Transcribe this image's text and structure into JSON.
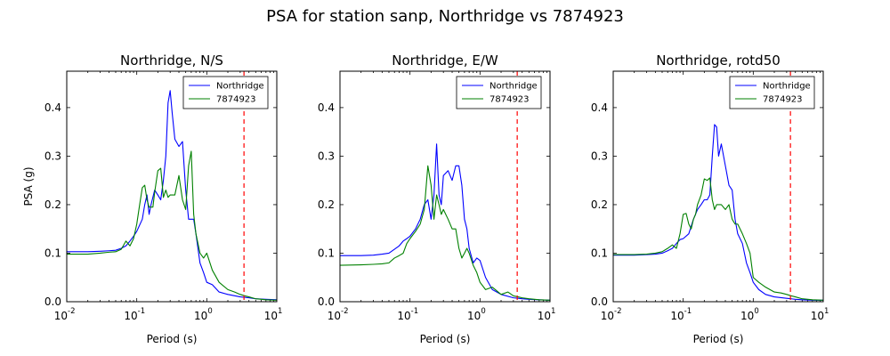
{
  "figure": {
    "suptitle": "PSA for station sanp, Northridge vs 7874923"
  },
  "colors": {
    "series_a": "#0000ff",
    "series_b": "#008000",
    "marker": "#ff0000"
  },
  "chart_data": [
    {
      "type": "line",
      "title": "Northridge, N/S",
      "xlabel": "Period (s)",
      "ylabel": "PSA (g)",
      "xscale": "log",
      "xlim": [
        0.01,
        10
      ],
      "ylim": [
        0,
        0.475
      ],
      "xticks": [
        0.01,
        0.1,
        1,
        10
      ],
      "xtick_labels": [
        "10",
        "10",
        "10",
        "10"
      ],
      "xtick_exponents": [
        "-2",
        "-1",
        "0",
        "1"
      ],
      "yticks": [
        0,
        0.1,
        0.2,
        0.3,
        0.4
      ],
      "ytick_labels": [
        "0.0",
        "0.1",
        "0.2",
        "0.3",
        "0.4"
      ],
      "legend_position": "top-right",
      "vline": 3.4,
      "series": [
        {
          "name": "Northridge",
          "x": [
            0.01,
            0.02,
            0.03,
            0.04,
            0.05,
            0.06,
            0.07,
            0.08,
            0.09,
            0.1,
            0.12,
            0.13,
            0.14,
            0.15,
            0.16,
            0.18,
            0.2,
            0.22,
            0.24,
            0.26,
            0.28,
            0.3,
            0.32,
            0.35,
            0.4,
            0.45,
            0.5,
            0.55,
            0.6,
            0.65,
            0.7,
            0.8,
            0.9,
            1.0,
            1.2,
            1.5,
            2.0,
            3.0,
            4.0,
            5.0,
            7.0,
            10.0
          ],
          "y": [
            0.103,
            0.103,
            0.104,
            0.105,
            0.106,
            0.11,
            0.115,
            0.125,
            0.135,
            0.145,
            0.17,
            0.2,
            0.22,
            0.18,
            0.2,
            0.23,
            0.22,
            0.21,
            0.25,
            0.3,
            0.41,
            0.435,
            0.39,
            0.335,
            0.32,
            0.33,
            0.23,
            0.17,
            0.17,
            0.17,
            0.14,
            0.08,
            0.06,
            0.04,
            0.035,
            0.02,
            0.015,
            0.01,
            0.008,
            0.006,
            0.005,
            0.004
          ]
        },
        {
          "name": "7874923",
          "x": [
            0.01,
            0.02,
            0.03,
            0.04,
            0.05,
            0.06,
            0.07,
            0.08,
            0.09,
            0.1,
            0.11,
            0.12,
            0.13,
            0.14,
            0.15,
            0.17,
            0.18,
            0.2,
            0.22,
            0.24,
            0.26,
            0.28,
            0.3,
            0.35,
            0.4,
            0.45,
            0.5,
            0.55,
            0.6,
            0.65,
            0.7,
            0.8,
            0.9,
            1.0,
            1.2,
            1.5,
            2.0,
            2.5,
            3.0,
            3.5,
            4.0,
            5.0,
            7.0,
            10.0
          ],
          "y": [
            0.098,
            0.098,
            0.1,
            0.102,
            0.103,
            0.108,
            0.125,
            0.115,
            0.13,
            0.16,
            0.2,
            0.235,
            0.24,
            0.21,
            0.195,
            0.195,
            0.225,
            0.27,
            0.275,
            0.215,
            0.23,
            0.215,
            0.22,
            0.22,
            0.26,
            0.21,
            0.19,
            0.28,
            0.31,
            0.18,
            0.14,
            0.1,
            0.09,
            0.1,
            0.065,
            0.04,
            0.025,
            0.02,
            0.015,
            0.012,
            0.01,
            0.006,
            0.004,
            0.003
          ]
        }
      ]
    },
    {
      "type": "line",
      "title": "Northridge, E/W",
      "xlabel": "Period (s)",
      "ylabel": "",
      "xscale": "log",
      "xlim": [
        0.01,
        10
      ],
      "ylim": [
        0,
        0.475
      ],
      "xticks": [
        0.01,
        0.1,
        1,
        10
      ],
      "xtick_labels": [
        "10",
        "10",
        "10",
        "10"
      ],
      "xtick_exponents": [
        "-2",
        "-1",
        "0",
        "1"
      ],
      "yticks": [
        0,
        0.1,
        0.2,
        0.3,
        0.4
      ],
      "ytick_labels": [
        "0.0",
        "0.1",
        "0.2",
        "0.3",
        "0.4"
      ],
      "legend_position": "top-right",
      "vline": 3.4,
      "series": [
        {
          "name": "Northridge",
          "x": [
            0.01,
            0.02,
            0.03,
            0.04,
            0.05,
            0.06,
            0.07,
            0.08,
            0.09,
            0.1,
            0.12,
            0.14,
            0.16,
            0.18,
            0.2,
            0.22,
            0.24,
            0.26,
            0.28,
            0.3,
            0.35,
            0.4,
            0.45,
            0.5,
            0.55,
            0.6,
            0.65,
            0.7,
            0.8,
            0.9,
            1.0,
            1.2,
            1.5,
            2.0,
            3.0,
            4.0,
            5.0,
            7.0,
            10.0
          ],
          "y": [
            0.095,
            0.095,
            0.096,
            0.098,
            0.1,
            0.108,
            0.115,
            0.125,
            0.13,
            0.135,
            0.15,
            0.17,
            0.2,
            0.21,
            0.17,
            0.22,
            0.325,
            0.22,
            0.2,
            0.26,
            0.27,
            0.25,
            0.28,
            0.28,
            0.24,
            0.17,
            0.15,
            0.11,
            0.08,
            0.09,
            0.085,
            0.05,
            0.025,
            0.015,
            0.008,
            0.006,
            0.005,
            0.004,
            0.003
          ]
        },
        {
          "name": "7874923",
          "x": [
            0.01,
            0.02,
            0.03,
            0.04,
            0.05,
            0.06,
            0.07,
            0.08,
            0.09,
            0.1,
            0.12,
            0.14,
            0.16,
            0.18,
            0.2,
            0.22,
            0.24,
            0.26,
            0.28,
            0.3,
            0.35,
            0.4,
            0.45,
            0.5,
            0.55,
            0.6,
            0.65,
            0.7,
            0.8,
            0.9,
            1.0,
            1.2,
            1.5,
            2.0,
            2.5,
            3.0,
            3.5,
            4.0,
            5.0,
            7.0,
            10.0
          ],
          "y": [
            0.075,
            0.076,
            0.077,
            0.078,
            0.08,
            0.09,
            0.095,
            0.1,
            0.12,
            0.13,
            0.145,
            0.16,
            0.19,
            0.28,
            0.24,
            0.17,
            0.22,
            0.2,
            0.18,
            0.19,
            0.17,
            0.15,
            0.15,
            0.11,
            0.09,
            0.1,
            0.11,
            0.1,
            0.075,
            0.06,
            0.04,
            0.025,
            0.03,
            0.015,
            0.02,
            0.012,
            0.01,
            0.008,
            0.006,
            0.004,
            0.003
          ]
        }
      ]
    },
    {
      "type": "line",
      "title": "Northridge, rotd50",
      "xlabel": "Period (s)",
      "ylabel": "",
      "xscale": "log",
      "xlim": [
        0.01,
        10
      ],
      "ylim": [
        0,
        0.475
      ],
      "xticks": [
        0.01,
        0.1,
        1,
        10
      ],
      "xtick_labels": [
        "10",
        "10",
        "10",
        "10"
      ],
      "xtick_exponents": [
        "-2",
        "-1",
        "0",
        "1"
      ],
      "yticks": [
        0,
        0.1,
        0.2,
        0.3,
        0.4
      ],
      "ytick_labels": [
        "0.0",
        "0.1",
        "0.2",
        "0.3",
        "0.4"
      ],
      "legend_position": "top-right",
      "vline": 3.4,
      "series": [
        {
          "name": "Northridge",
          "x": [
            0.01,
            0.02,
            0.03,
            0.04,
            0.05,
            0.06,
            0.07,
            0.08,
            0.09,
            0.1,
            0.12,
            0.14,
            0.16,
            0.18,
            0.2,
            0.22,
            0.24,
            0.26,
            0.28,
            0.3,
            0.32,
            0.35,
            0.4,
            0.45,
            0.5,
            0.55,
            0.6,
            0.7,
            0.8,
            0.9,
            1.0,
            1.2,
            1.5,
            2.0,
            3.0,
            4.0,
            5.0,
            7.0,
            10.0
          ],
          "y": [
            0.096,
            0.096,
            0.097,
            0.098,
            0.1,
            0.105,
            0.11,
            0.12,
            0.128,
            0.13,
            0.14,
            0.17,
            0.19,
            0.2,
            0.21,
            0.21,
            0.22,
            0.3,
            0.365,
            0.36,
            0.3,
            0.325,
            0.28,
            0.24,
            0.23,
            0.17,
            0.14,
            0.12,
            0.08,
            0.06,
            0.04,
            0.025,
            0.015,
            0.01,
            0.007,
            0.005,
            0.004,
            0.003,
            0.003
          ]
        },
        {
          "name": "7874923",
          "x": [
            0.01,
            0.02,
            0.03,
            0.04,
            0.05,
            0.06,
            0.07,
            0.08,
            0.09,
            0.1,
            0.11,
            0.12,
            0.13,
            0.14,
            0.15,
            0.16,
            0.18,
            0.2,
            0.22,
            0.24,
            0.26,
            0.28,
            0.3,
            0.35,
            0.4,
            0.45,
            0.5,
            0.55,
            0.6,
            0.7,
            0.8,
            0.9,
            1.0,
            1.2,
            1.5,
            2.0,
            2.5,
            3.0,
            3.5,
            4.0,
            5.0,
            7.0,
            10.0
          ],
          "y": [
            0.097,
            0.097,
            0.098,
            0.1,
            0.103,
            0.11,
            0.117,
            0.11,
            0.14,
            0.18,
            0.182,
            0.16,
            0.15,
            0.17,
            0.18,
            0.2,
            0.22,
            0.253,
            0.25,
            0.255,
            0.21,
            0.19,
            0.2,
            0.2,
            0.19,
            0.2,
            0.17,
            0.16,
            0.16,
            0.14,
            0.12,
            0.1,
            0.05,
            0.04,
            0.03,
            0.02,
            0.018,
            0.015,
            0.012,
            0.01,
            0.006,
            0.004,
            0.003
          ]
        }
      ]
    }
  ]
}
